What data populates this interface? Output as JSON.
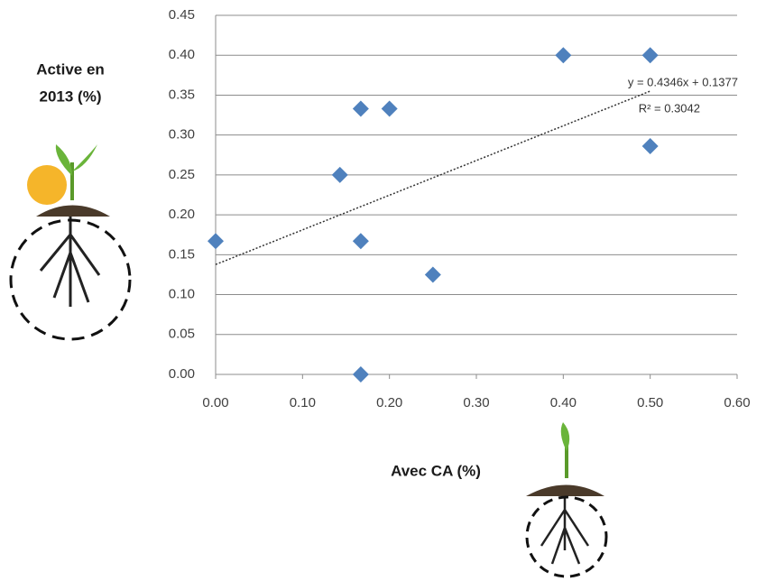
{
  "chart_data": {
    "type": "scatter",
    "y_label": [
      "Active en",
      "2013 (%)"
    ],
    "x_label": "Avec CA (%)",
    "series": [
      {
        "color": "#4f81bd",
        "x": [
          0.0,
          0.143,
          0.167,
          0.2,
          0.167,
          0.167,
          0.25,
          0.4,
          0.5,
          0.5
        ],
        "values": [
          0.167,
          0.25,
          0.333,
          0.333,
          0.167,
          0.0,
          0.125,
          0.4,
          0.4,
          0.286
        ]
      }
    ],
    "trendline": {
      "slope": 0.4346,
      "intercept": 0.1377,
      "equation": "y = 0.4346x + 0.1377",
      "r2_label": "R² = 0.3042"
    },
    "xlim": [
      0,
      0.6
    ],
    "xticks": [
      {
        "value": 0,
        "label": "0.00"
      },
      {
        "value": 0.1,
        "label": "0.10"
      },
      {
        "value": 0.2,
        "label": "0.20"
      },
      {
        "value": 0.3,
        "label": "0.30"
      },
      {
        "value": 0.4,
        "label": "0.40"
      },
      {
        "value": 0.5,
        "label": "0.50"
      },
      {
        "value": 0.6,
        "label": "0.60"
      }
    ],
    "ylim": [
      0,
      0.45
    ],
    "yticks": [
      {
        "value": 0,
        "label": "0.00"
      },
      0.05,
      {
        "value": 0.1,
        "label": "0.10"
      },
      0.15,
      {
        "value": 0.2,
        "label": "0.20"
      },
      0.25,
      {
        "value": 0.3,
        "label": "0.30"
      },
      0.35,
      {
        "value": 0.4,
        "label": "0.40"
      },
      0.45
    ],
    "grid": true
  }
}
